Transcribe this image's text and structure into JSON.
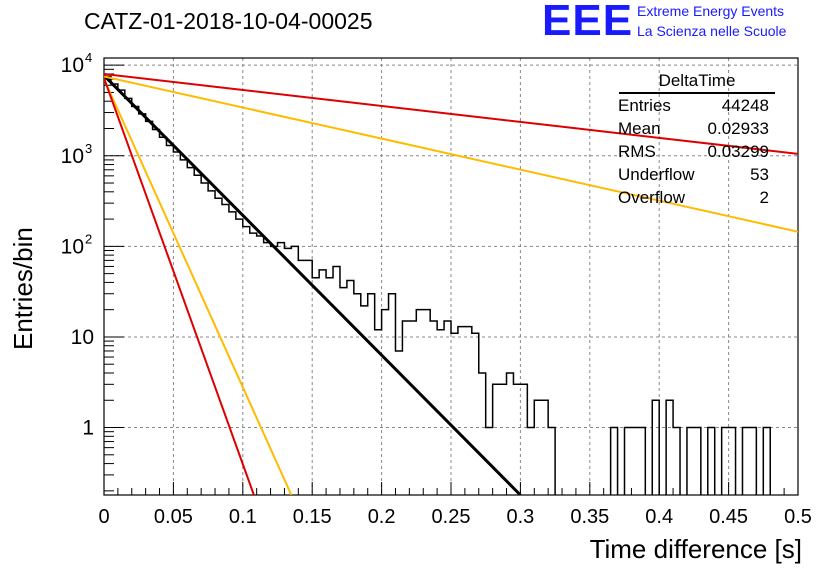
{
  "header": {
    "title": "CATZ-01-2018-10-04-00025",
    "logo_text": "EEE",
    "logo_line1": "Extreme Energy Events",
    "logo_line2": "La Scienza nelle Scuole"
  },
  "stats_box": {
    "title": "DeltaTime",
    "rows": [
      {
        "label": "Entries",
        "value": "44248"
      },
      {
        "label": "Mean",
        "value": "0.02933"
      },
      {
        "label": "RMS",
        "value": "0.03299"
      },
      {
        "label": "Underflow",
        "value": "53"
      },
      {
        "label": "Overflow",
        "value": "2"
      }
    ]
  },
  "colors": {
    "histogram": "#000000",
    "fit_black": "#000000",
    "red": "#dd0000",
    "orange": "#ffbb00",
    "grid": "#888888"
  },
  "chart_data": {
    "type": "line",
    "title": "CATZ-01-2018-10-04-00025",
    "xlabel": "Time difference [s]",
    "ylabel": "Entries/bin",
    "xlim": [
      0,
      0.5
    ],
    "ylim": [
      0.18,
      12000
    ],
    "yscale": "log",
    "grid": true,
    "x_ticks": [
      "0",
      "0.05",
      "0.1",
      "0.15",
      "0.2",
      "0.25",
      "0.3",
      "0.35",
      "0.4",
      "0.45",
      "0.5"
    ],
    "y_ticks": [
      {
        "value": 1,
        "label": "1",
        "exp": ""
      },
      {
        "value": 10,
        "label": "10",
        "exp": ""
      },
      {
        "value": 100,
        "label": "10",
        "exp": "2"
      },
      {
        "value": 1000,
        "label": "10",
        "exp": "3"
      },
      {
        "value": 10000,
        "label": "10",
        "exp": "4"
      }
    ],
    "histogram": {
      "name": "DeltaTime",
      "bin_width": 0.005,
      "x_start": 0,
      "counts": [
        7500,
        6200,
        5300,
        4300,
        3500,
        2900,
        2400,
        1950,
        1600,
        1300,
        1100,
        900,
        740,
        610,
        500,
        410,
        340,
        290,
        240,
        200,
        165,
        140,
        130,
        110,
        100,
        110,
        95,
        100,
        70,
        70,
        45,
        55,
        45,
        60,
        35,
        42,
        30,
        22,
        30,
        12,
        20,
        30,
        7,
        15,
        15,
        20,
        20,
        15,
        12,
        15,
        11,
        13,
        13,
        11,
        4,
        1,
        3,
        3,
        4,
        3,
        3,
        1,
        2,
        2,
        1,
        0.1,
        0.1,
        0.1,
        0.1,
        0.1,
        0.1,
        0.1,
        0.1,
        1,
        0.1,
        1,
        1,
        1,
        0.1,
        2,
        0.1,
        2,
        1,
        0.1,
        1,
        1,
        0.1,
        1,
        0.1,
        1,
        1,
        0.1,
        1,
        1,
        0.1,
        1,
        0.1,
        0.1,
        0.1,
        0.1
      ]
    },
    "series": [
      {
        "color": "black",
        "x": [
          0,
          0.3
        ],
        "y": [
          7700,
          0.18
        ],
        "width": 3
      },
      {
        "color": "red",
        "x": [
          0,
          0.5
        ],
        "y": [
          8000,
          1050
        ],
        "width": 2
      },
      {
        "color": "orange",
        "x": [
          0,
          0.5
        ],
        "y": [
          7500,
          145
        ],
        "width": 2
      },
      {
        "color": "orange",
        "x": [
          0,
          0.135
        ],
        "y": [
          7000,
          0.18
        ],
        "width": 2
      },
      {
        "color": "red",
        "x": [
          0,
          0.108
        ],
        "y": [
          7200,
          0.18
        ],
        "width": 2
      }
    ]
  }
}
